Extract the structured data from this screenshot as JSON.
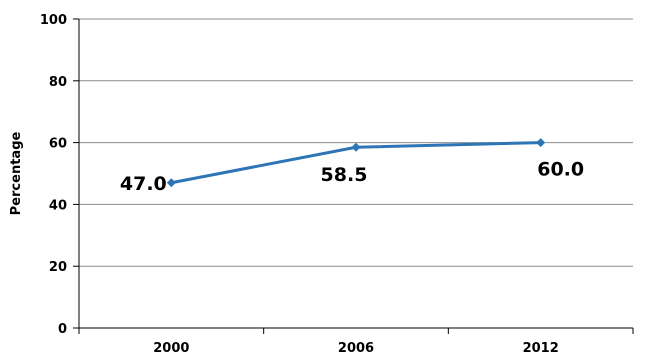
{
  "chart_data": {
    "type": "line",
    "title": "",
    "xlabel": "",
    "ylabel": "Percentage",
    "ylim": [
      0,
      100
    ],
    "yticks": [
      0,
      20,
      40,
      60,
      80,
      100
    ],
    "categories": [
      "2000",
      "2006",
      "2012"
    ],
    "series": [
      {
        "values": [
          47.0,
          58.5,
          60.0
        ],
        "data_labels": [
          "47.0",
          "58.5",
          "60.0"
        ],
        "color": "#2e75b6"
      }
    ],
    "grid": "horizontal",
    "legend": "none"
  }
}
